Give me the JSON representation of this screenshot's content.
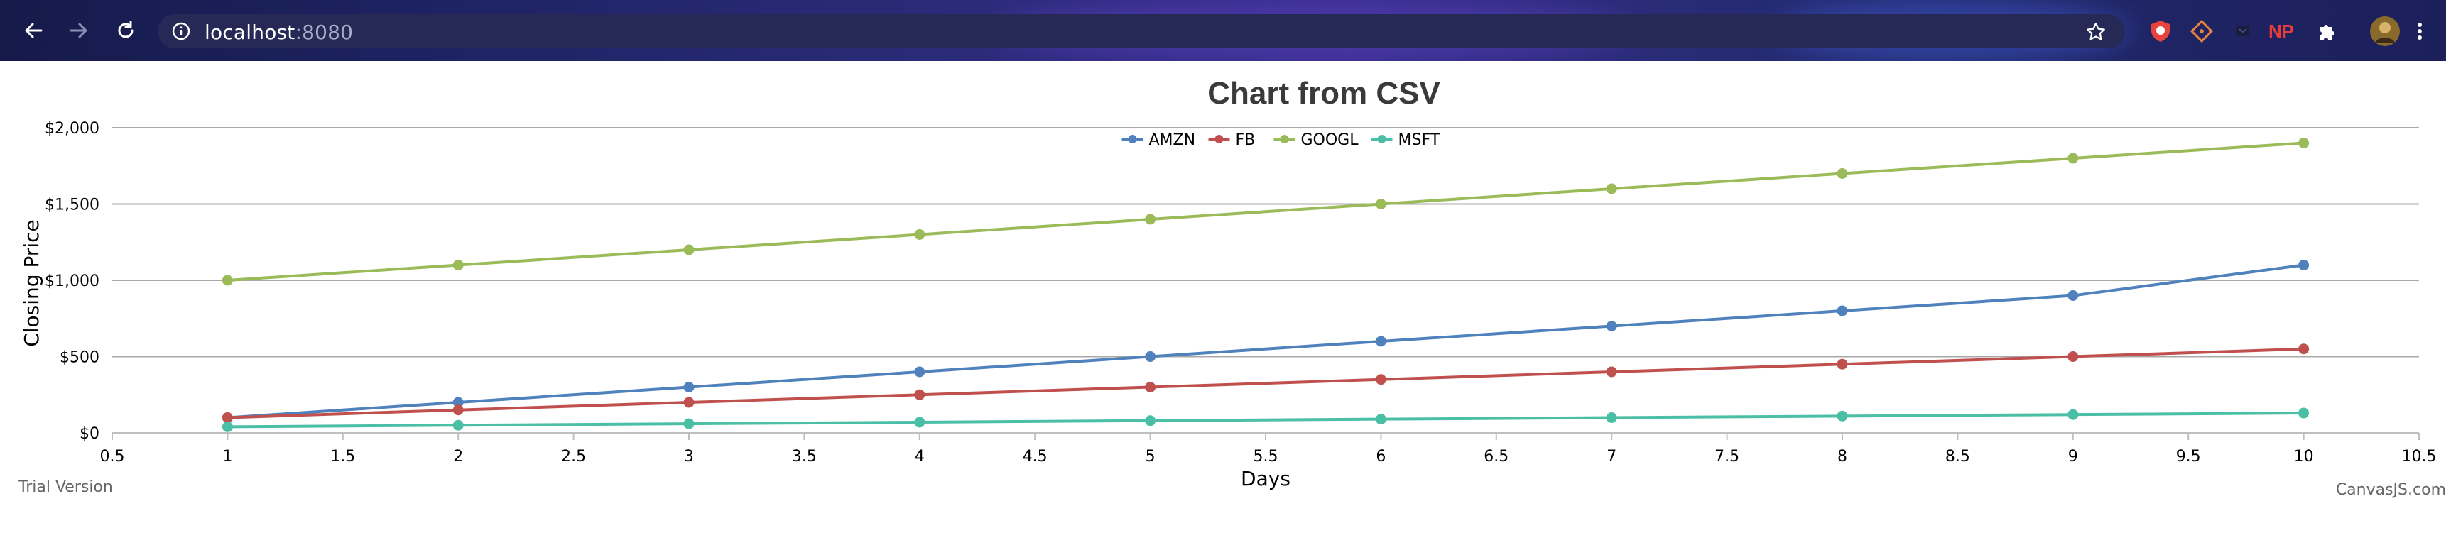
{
  "browser": {
    "url_host": "localhost",
    "url_port": ":8080",
    "icons": {
      "back": "arrow-left-icon",
      "forward": "arrow-right-icon",
      "reload": "reload-icon",
      "site_info": "info-icon",
      "bookmark": "star-icon",
      "extension_np": "NP"
    }
  },
  "page": {
    "trial_text": "Trial Version",
    "credit_text": "CanvasJS.com"
  },
  "chart_data": {
    "type": "line",
    "title": "Chart from CSV",
    "xlabel": "Days",
    "ylabel": "Closing Price",
    "xlim": [
      0.5,
      10.5
    ],
    "ylim": [
      0,
      2000
    ],
    "x_ticks": [
      "0.5",
      "1",
      "1.5",
      "2",
      "2.5",
      "3",
      "3.5",
      "4",
      "4.5",
      "5",
      "5.5",
      "6",
      "6.5",
      "7",
      "7.5",
      "8",
      "8.5",
      "9",
      "9.5",
      "10",
      "10.5"
    ],
    "x_tick_values": [
      0.5,
      1,
      1.5,
      2,
      2.5,
      3,
      3.5,
      4,
      4.5,
      5,
      5.5,
      6,
      6.5,
      7,
      7.5,
      8,
      8.5,
      9,
      9.5,
      10,
      10.5
    ],
    "y_ticks": [
      "$0",
      "$500",
      "$1,000",
      "$1,500",
      "$2,000"
    ],
    "y_tick_values": [
      0,
      500,
      1000,
      1500,
      2000
    ],
    "grid": true,
    "legend_position": "top-center",
    "x": [
      1,
      2,
      3,
      4,
      5,
      6,
      7,
      8,
      9,
      10
    ],
    "series": [
      {
        "name": "AMZN",
        "color": "#4f81bc",
        "values": [
          100,
          200,
          300,
          400,
          500,
          600,
          700,
          800,
          900,
          1100
        ]
      },
      {
        "name": "FB",
        "color": "#c0504e",
        "values": [
          100,
          150,
          200,
          250,
          300,
          350,
          400,
          450,
          500,
          550
        ]
      },
      {
        "name": "GOOGL",
        "color": "#9bbb58",
        "values": [
          1000,
          1100,
          1200,
          1300,
          1400,
          1500,
          1600,
          1700,
          1800,
          1900
        ]
      },
      {
        "name": "MSFT",
        "color": "#4bbfa6",
        "values": [
          40,
          50,
          60,
          70,
          80,
          90,
          100,
          110,
          120,
          130
        ]
      }
    ]
  }
}
